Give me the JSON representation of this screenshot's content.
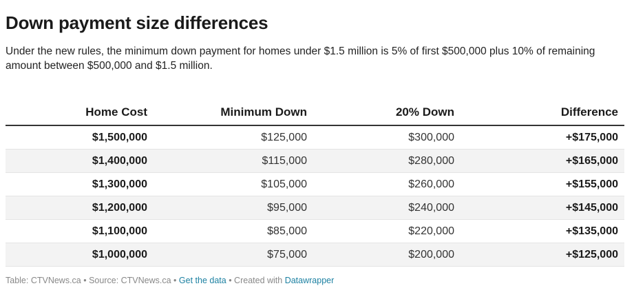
{
  "header": {
    "title": "Down payment size differences",
    "description": "Under the new rules, the minimum down payment for homes under $1.5 million is 5% of first $500,000 plus 10% of remaining amount between $500,000 and $1.5 million."
  },
  "chart_data": {
    "type": "table",
    "columns": [
      "Home Cost",
      "Minimum Down",
      "20% Down",
      "Difference"
    ],
    "rows": [
      [
        "$1,500,000",
        "$125,000",
        "$300,000",
        "+$175,000"
      ],
      [
        "$1,400,000",
        "$115,000",
        "$280,000",
        "+$165,000"
      ],
      [
        "$1,300,000",
        "$105,000",
        "$260,000",
        "+$155,000"
      ],
      [
        "$1,200,000",
        "$95,000",
        "$240,000",
        "+$145,000"
      ],
      [
        "$1,100,000",
        "$85,000",
        "$220,000",
        "+$135,000"
      ],
      [
        "$1,000,000",
        "$75,000",
        "$200,000",
        "+$125,000"
      ]
    ]
  },
  "footer": {
    "table_label": "Table: CTVNews.ca",
    "sep1": " • ",
    "source_label": "Source: CTVNews.ca",
    "sep2": " • ",
    "get_data_label": "Get the data",
    "sep3": " • ",
    "created_label": "Created with ",
    "datawrapper_label": "Datawrapper"
  }
}
